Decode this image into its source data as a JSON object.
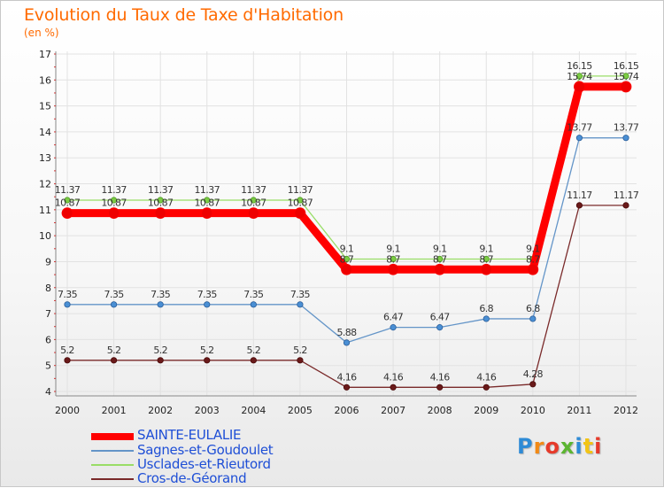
{
  "title": "Evolution du Taux de Taxe d'Habitation",
  "subtitle": "(en %)",
  "logo": {
    "letters": [
      "P",
      "r",
      "o",
      "x",
      "i",
      "t",
      "i"
    ],
    "colors": [
      "#2e8bd6",
      "#f28a16",
      "#e63a2a",
      "#5cb531",
      "#2e8bd6",
      "#f2c416",
      "#e63a2a"
    ]
  },
  "chart_data": {
    "type": "line",
    "x": [
      "2000",
      "2001",
      "2002",
      "2003",
      "2004",
      "2005",
      "2006",
      "2007",
      "2008",
      "2009",
      "2010",
      "2011",
      "2012"
    ],
    "ylim": [
      4,
      17
    ],
    "yticks": [
      4,
      5,
      6,
      7,
      8,
      9,
      10,
      11,
      12,
      13,
      14,
      15,
      16,
      17
    ],
    "grid": true,
    "series": [
      {
        "name": "Sainte-Eulalie",
        "color": "#ff0000",
        "values": [
          10.87,
          10.87,
          10.87,
          10.87,
          10.87,
          10.87,
          8.7,
          8.7,
          8.7,
          8.7,
          8.7,
          15.74,
          15.74
        ],
        "labels": [
          "10.87",
          "10.87",
          "10.87",
          "10.87",
          "10.87",
          "10.87",
          "8.7",
          "8.7",
          "8.7",
          "8.7",
          "8.7",
          "15.74",
          "15.74"
        ]
      },
      {
        "name": "Sagnes-et-Goudoulet",
        "color": "#6495c8",
        "values": [
          7.35,
          7.35,
          7.35,
          7.35,
          7.35,
          7.35,
          5.88,
          6.47,
          6.47,
          6.8,
          6.8,
          13.77,
          13.77
        ],
        "labels": [
          "7.35",
          "7.35",
          "7.35",
          "7.35",
          "7.35",
          "7.35",
          "5.88",
          "6.47",
          "6.47",
          "6.8",
          "6.8",
          "13.77",
          "13.77"
        ]
      },
      {
        "name": "Usclades-et-Rieutord",
        "color": "#99dd66",
        "values": [
          11.37,
          11.37,
          11.37,
          11.37,
          11.37,
          11.37,
          9.1,
          9.1,
          9.1,
          9.1,
          9.1,
          16.15,
          16.15
        ],
        "labels": [
          "11.37",
          "11.37",
          "11.37",
          "11.37",
          "11.37",
          "11.37",
          "9.1",
          "9.1",
          "9.1",
          "9.1",
          "9.1",
          "16.15",
          "16.15"
        ]
      },
      {
        "name": "Cros-de-Géorand",
        "color": "#7a2a2a",
        "values": [
          5.2,
          5.2,
          5.2,
          5.2,
          5.2,
          5.2,
          4.16,
          4.16,
          4.16,
          4.16,
          4.28,
          11.17,
          11.17
        ],
        "labels": [
          "5.2",
          "5.2",
          "5.2",
          "5.2",
          "5.2",
          "5.2",
          "4.16",
          "4.16",
          "4.16",
          "4.16",
          "4.28",
          "11.17",
          "11.17"
        ]
      }
    ]
  },
  "legend": [
    {
      "label": "SAINTE-EULALIE",
      "color": "#ff0000"
    },
    {
      "label": "Sagnes-et-Goudoulet",
      "color": "#6495c8"
    },
    {
      "label": "Usclades-et-Rieutord",
      "color": "#99dd66"
    },
    {
      "label": "Cros-de-Géorand",
      "color": "#7a2a2a"
    }
  ]
}
